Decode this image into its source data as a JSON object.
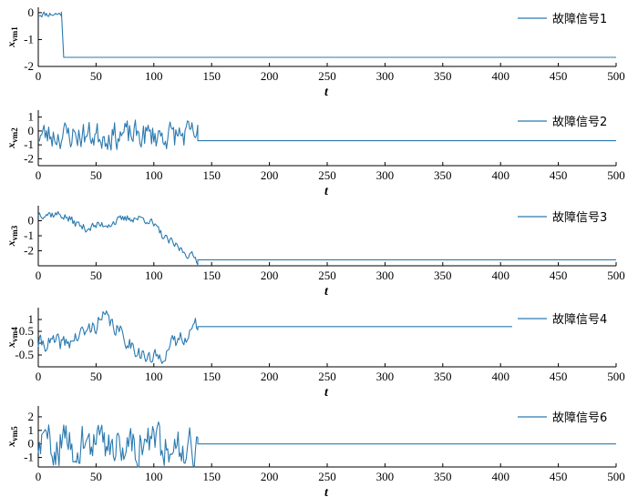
{
  "chart_data": [
    {
      "type": "line",
      "xlabel": "t",
      "ylabel": {
        "var": "x",
        "sub": "vm1"
      },
      "xlim": [
        0,
        500
      ],
      "ylim": [
        -2,
        0.2
      ],
      "xticks": [
        0,
        50,
        100,
        150,
        200,
        250,
        300,
        350,
        400,
        450,
        500
      ],
      "yticks": [
        0,
        -1,
        -2
      ],
      "legend": "故障信号1",
      "legend_position": "top-right",
      "series_color": "#2a7ab0",
      "segments": [
        {
          "t_start": 0,
          "t_end": 20,
          "kind": "noise",
          "level": -0.05,
          "amp": 0.12,
          "seed": 11
        },
        {
          "t_start": 20,
          "t_end": 22,
          "kind": "ramp",
          "from": 0.02,
          "to": -1.66
        },
        {
          "t_start": 22,
          "t_end": 500,
          "kind": "const",
          "level": -1.66
        }
      ]
    },
    {
      "type": "line",
      "xlabel": "t",
      "ylabel": {
        "var": "x",
        "sub": "vm2"
      },
      "xlim": [
        0,
        500
      ],
      "ylim": [
        -2.5,
        1.5
      ],
      "xticks": [
        0,
        50,
        100,
        150,
        200,
        250,
        300,
        350,
        400,
        450,
        500
      ],
      "yticks": [
        1,
        0,
        -1,
        -2
      ],
      "legend": "故障信号2",
      "legend_position": "top-right",
      "series_color": "#2a7ab0",
      "segments": [
        {
          "t_start": 0,
          "t_end": 138,
          "kind": "noise",
          "level": -0.3,
          "amp": 1.0,
          "seed": 23
        },
        {
          "t_start": 138,
          "t_end": 500,
          "kind": "const",
          "level": -0.7
        }
      ]
    },
    {
      "type": "line",
      "xlabel": "t",
      "ylabel": {
        "var": "x",
        "sub": "vm3"
      },
      "xlim": [
        0,
        500
      ],
      "ylim": [
        -3,
        1
      ],
      "xticks": [
        0,
        50,
        100,
        150,
        200,
        250,
        300,
        350,
        400,
        450,
        500
      ],
      "yticks": [
        0,
        -1,
        -2
      ],
      "legend": "故障信号3",
      "legend_position": "top-right",
      "series_color": "#2a7ab0",
      "segments": [
        {
          "t_start": 0,
          "t_end": 138,
          "kind": "path",
          "anchors": [
            [
              0,
              0.5
            ],
            [
              20,
              0.4
            ],
            [
              40,
              -0.5
            ],
            [
              60,
              -0.2
            ],
            [
              80,
              0.2
            ],
            [
              95,
              0.1
            ],
            [
              110,
              -1.2
            ],
            [
              125,
              -2.0
            ],
            [
              138,
              -2.6
            ]
          ],
          "amp": 0.3,
          "seed": 37
        },
        {
          "t_start": 138,
          "t_end": 500,
          "kind": "const",
          "level": -2.6
        }
      ]
    },
    {
      "type": "line",
      "xlabel": "t",
      "ylabel": {
        "var": "x",
        "sub": "vm4"
      },
      "xlim": [
        0,
        500
      ],
      "ylim": [
        -1,
        1.5
      ],
      "xticks": [
        0,
        50,
        100,
        150,
        200,
        250,
        300,
        350,
        400,
        450,
        500
      ],
      "yticks": [
        1,
        0.5,
        0,
        -0.5
      ],
      "legend": "故障信号4",
      "legend_position": "top-right",
      "series_color": "#2a7ab0",
      "segments": [
        {
          "t_start": 0,
          "t_end": 138,
          "kind": "path",
          "anchors": [
            [
              0,
              0.0
            ],
            [
              25,
              0.0
            ],
            [
              45,
              0.6
            ],
            [
              58,
              1.1
            ],
            [
              75,
              0.2
            ],
            [
              95,
              -0.7
            ],
            [
              105,
              -0.6
            ],
            [
              120,
              0.1
            ],
            [
              138,
              0.75
            ]
          ],
          "amp": 0.35,
          "seed": 41
        },
        {
          "t_start": 138,
          "t_end": 410,
          "kind": "const",
          "level": 0.7
        }
      ]
    },
    {
      "type": "line",
      "xlabel": "t",
      "ylabel": {
        "var": "x",
        "sub": "vm5"
      },
      "xlim": [
        0,
        500
      ],
      "ylim": [
        -1.7,
        2.8
      ],
      "xticks": [
        0,
        50,
        100,
        150,
        200,
        250,
        300,
        350,
        400,
        450,
        500
      ],
      "yticks": [
        2,
        1,
        0,
        -1
      ],
      "legend": "故障信号6",
      "legend_position": "top-right",
      "series_color": "#2a7ab0",
      "segments": [
        {
          "t_start": 0,
          "t_end": 138,
          "kind": "noise",
          "level": 0.0,
          "amp": 1.5,
          "seed": 59
        },
        {
          "t_start": 138,
          "t_end": 500,
          "kind": "const",
          "level": 0.0
        }
      ]
    }
  ]
}
